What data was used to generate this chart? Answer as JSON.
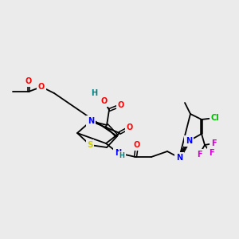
{
  "bg_color": "#ebebeb",
  "atom_colors": {
    "O": "#ff0000",
    "N": "#0000ff",
    "S": "#cccc00",
    "Cl": "#00bb00",
    "F": "#cc00cc",
    "H": "#008080",
    "C": "#000000"
  }
}
